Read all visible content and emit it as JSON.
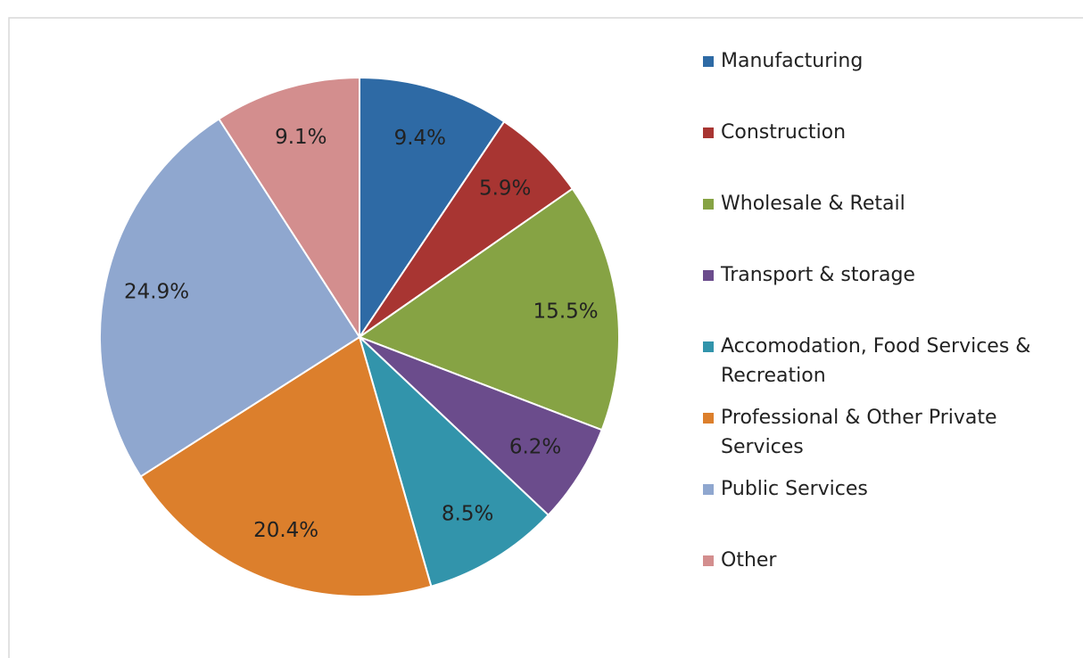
{
  "chart_data": {
    "type": "pie",
    "categories": [
      "Manufacturing",
      "Construction",
      "Wholesale & Retail",
      "Transport & storage",
      "Accomodation, Food Services & Recreation",
      "Professional & Other Private Services",
      "Public Services",
      "Other"
    ],
    "values": [
      9.4,
      5.9,
      15.5,
      6.2,
      8.5,
      20.4,
      24.9,
      9.1
    ],
    "value_labels": [
      "9.4%",
      "5.9%",
      "15.5%",
      "6.2%",
      "8.5%",
      "20.4%",
      "24.9%",
      "9.1%"
    ],
    "colors": [
      "#2e6aa5",
      "#a83532",
      "#86a344",
      "#6b4c8c",
      "#3294ab",
      "#dc7f2c",
      "#8fa7cf",
      "#d38e8e"
    ],
    "legend": "right"
  }
}
